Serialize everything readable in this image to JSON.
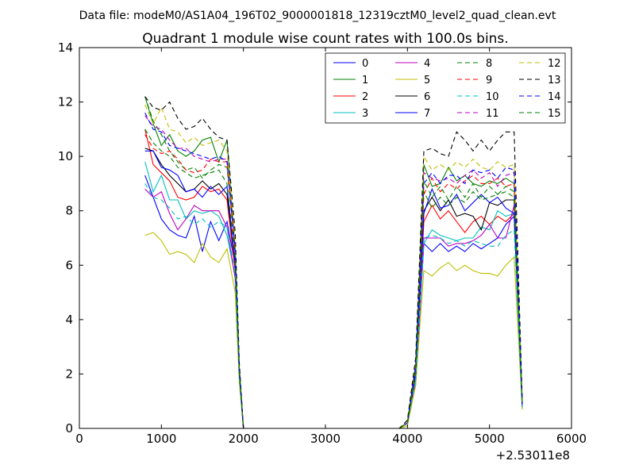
{
  "header": {
    "data_file": "Data file: modeM0/AS1A04_196T02_9000001818_12319cztM0_level2_quad_clean.evt"
  },
  "chart_data": {
    "type": "line",
    "title": "Quadrant 1 module wise count rates with 100.0s bins.",
    "xlabel": "",
    "ylabel": "",
    "x_offset_label": "+2.53011e8",
    "xlim": [
      0,
      6000
    ],
    "ylim": [
      0,
      14
    ],
    "x_ticks": [
      0,
      1000,
      2000,
      3000,
      4000,
      5000,
      6000
    ],
    "y_ticks": [
      0,
      2,
      4,
      6,
      8,
      10,
      12,
      14
    ],
    "grid": false,
    "legend_position": "top-right",
    "legend_columns": 4,
    "x": [
      800,
      900,
      1000,
      1100,
      1200,
      1300,
      1400,
      1500,
      1600,
      1700,
      1800,
      1900,
      1950,
      2000,
      2100,
      2200,
      2300,
      2400,
      2500,
      2600,
      2700,
      2800,
      2900,
      3000,
      3100,
      3200,
      3300,
      3400,
      3500,
      3600,
      3700,
      3800,
      3900,
      4000,
      4100,
      4200,
      4300,
      4400,
      4500,
      4600,
      4700,
      4800,
      4900,
      5000,
      5100,
      5200,
      5300,
      5400
    ],
    "series": [
      {
        "name": "0",
        "color": "#0000ff",
        "dash": false,
        "values": [
          9.3,
          8.5,
          7.7,
          7.3,
          7.1,
          7.0,
          7.8,
          6.5,
          7.6,
          6.9,
          7.6,
          6.0,
          2.0,
          0,
          0,
          0,
          0,
          0,
          0,
          0,
          0,
          0,
          0,
          0,
          0,
          0,
          0,
          0,
          0,
          0,
          0,
          0,
          0,
          0.2,
          1.6,
          6.8,
          6.5,
          6.8,
          6.5,
          6.7,
          6.5,
          6.8,
          6.6,
          6.8,
          7.0,
          7.5,
          7.8,
          0.7
        ]
      },
      {
        "name": "1",
        "color": "#008000",
        "dash": false,
        "values": [
          12.2,
          11.2,
          10.4,
          10.8,
          10.2,
          10.0,
          10.2,
          10.6,
          10.7,
          9.8,
          10.6,
          6.5,
          2.2,
          0,
          0,
          0,
          0,
          0,
          0,
          0,
          0,
          0,
          0,
          0,
          0,
          0,
          0,
          0,
          0,
          0,
          0,
          0,
          0,
          0.2,
          2.2,
          9.7,
          8.9,
          9.0,
          9.6,
          9.1,
          9.3,
          9.0,
          8.9,
          9.1,
          9.0,
          9.2,
          9.0,
          0.9
        ]
      },
      {
        "name": "2",
        "color": "#ff0000",
        "dash": false,
        "values": [
          11.0,
          9.7,
          9.4,
          9.1,
          8.5,
          8.4,
          8.5,
          8.9,
          8.7,
          8.8,
          8.4,
          5.8,
          2.0,
          0,
          0,
          0,
          0,
          0,
          0,
          0,
          0,
          0,
          0,
          0,
          0,
          0,
          0,
          0,
          0,
          0,
          0,
          0,
          0,
          0.2,
          2.0,
          7.6,
          8.2,
          7.7,
          8.0,
          7.6,
          7.2,
          7.6,
          7.8,
          7.5,
          7.8,
          7.6,
          7.9,
          0.8
        ]
      },
      {
        "name": "3",
        "color": "#00bfbf",
        "dash": false,
        "values": [
          9.8,
          8.7,
          9.3,
          8.4,
          8.4,
          7.7,
          8.0,
          7.9,
          8.0,
          7.8,
          7.1,
          5.6,
          1.9,
          0,
          0,
          0,
          0,
          0,
          0,
          0,
          0,
          0,
          0,
          0,
          0,
          0,
          0,
          0,
          0,
          0,
          0,
          0,
          0,
          0.2,
          1.8,
          6.8,
          7.3,
          7.1,
          7.0,
          6.9,
          7.0,
          7.0,
          7.4,
          7.3,
          8.0,
          7.8,
          7.9,
          0.8
        ]
      },
      {
        "name": "4",
        "color": "#bf00bf",
        "dash": false,
        "values": [
          8.8,
          8.5,
          8.7,
          7.9,
          7.3,
          7.7,
          8.2,
          8.0,
          8.0,
          8.0,
          7.4,
          5.5,
          1.9,
          0,
          0,
          0,
          0,
          0,
          0,
          0,
          0,
          0,
          0,
          0,
          0,
          0,
          0,
          0,
          0,
          0,
          0,
          0,
          0,
          0.2,
          1.7,
          7.0,
          7.0,
          7.0,
          6.7,
          6.8,
          6.8,
          6.9,
          7.1,
          7.5,
          7.0,
          7.0,
          8.2,
          0.8
        ]
      },
      {
        "name": "5",
        "color": "#bfbf00",
        "dash": false,
        "values": [
          7.1,
          7.2,
          6.9,
          6.4,
          6.5,
          6.4,
          6.1,
          6.8,
          6.3,
          6.1,
          6.6,
          5.0,
          1.7,
          0,
          0,
          0,
          0,
          0,
          0,
          0,
          0,
          0,
          0,
          0,
          0,
          0,
          0,
          0,
          0,
          0,
          0,
          0,
          0,
          0.1,
          1.6,
          5.8,
          5.6,
          5.9,
          6.1,
          5.8,
          6.0,
          5.8,
          5.7,
          5.7,
          5.6,
          6.0,
          6.3,
          0.7
        ]
      },
      {
        "name": "6",
        "color": "#000000",
        "dash": false,
        "values": [
          10.3,
          10.2,
          9.7,
          9.3,
          9.0,
          8.7,
          8.8,
          9.1,
          8.8,
          9.0,
          8.6,
          6.1,
          2.0,
          0,
          0,
          0,
          0,
          0,
          0,
          0,
          0,
          0,
          0,
          0,
          0,
          0,
          0,
          0,
          0,
          0,
          0,
          0,
          0,
          0.2,
          2.0,
          8.0,
          8.5,
          8.0,
          8.4,
          7.8,
          7.9,
          7.8,
          7.3,
          8.3,
          8.2,
          8.4,
          8.4,
          0.8
        ]
      },
      {
        "name": "7",
        "color": "#0000ff",
        "dash": false,
        "values": [
          10.2,
          10.2,
          9.6,
          9.5,
          9.3,
          8.7,
          8.8,
          8.5,
          8.9,
          8.6,
          8.9,
          6.0,
          2.0,
          0,
          0,
          0,
          0,
          0,
          0,
          0,
          0,
          0,
          0,
          0,
          0,
          0,
          0,
          0,
          0,
          0,
          0,
          0,
          0,
          0.2,
          2.0,
          7.9,
          8.8,
          8.1,
          8.2,
          8.6,
          8.0,
          8.3,
          8.6,
          8.3,
          8.5,
          8.1,
          7.9,
          0.8
        ]
      },
      {
        "name": "8",
        "color": "#008000",
        "dash": true,
        "values": [
          12.2,
          11.3,
          10.8,
          10.2,
          9.8,
          9.5,
          9.6,
          9.2,
          9.5,
          9.7,
          9.6,
          6.6,
          2.2,
          0,
          0,
          0,
          0,
          0,
          0,
          0,
          0,
          0,
          0,
          0,
          0,
          0,
          0,
          0,
          0,
          0,
          0,
          0,
          0,
          0.2,
          2.3,
          8.7,
          8.1,
          8.5,
          8.2,
          8.5,
          8.3,
          8.7,
          8.4,
          8.5,
          8.6,
          8.9,
          8.7,
          0.9
        ]
      },
      {
        "name": "9",
        "color": "#ff0000",
        "dash": true,
        "values": [
          10.8,
          10.3,
          10.1,
          10.2,
          9.9,
          9.5,
          9.4,
          9.5,
          9.9,
          9.8,
          9.8,
          6.4,
          2.1,
          0,
          0,
          0,
          0,
          0,
          0,
          0,
          0,
          0,
          0,
          0,
          0,
          0,
          0,
          0,
          0,
          0,
          0,
          0,
          0,
          0.2,
          2.2,
          8.6,
          9.2,
          8.7,
          9.0,
          8.8,
          9.1,
          9.3,
          9.0,
          9.0,
          9.2,
          8.9,
          9.0,
          0.9
        ]
      },
      {
        "name": "10",
        "color": "#00bfbf",
        "dash": true,
        "values": [
          9.0,
          8.5,
          8.4,
          8.1,
          7.7,
          7.8,
          7.5,
          7.7,
          7.4,
          7.6,
          7.4,
          5.7,
          1.9,
          0,
          0,
          0,
          0,
          0,
          0,
          0,
          0,
          0,
          0,
          0,
          0,
          0,
          0,
          0,
          0,
          0,
          0,
          0,
          0,
          0.2,
          1.8,
          7.0,
          7.1,
          7.0,
          6.8,
          6.9,
          6.7,
          6.9,
          6.8,
          6.7,
          6.7,
          7.1,
          7.3,
          0.8
        ]
      },
      {
        "name": "11",
        "color": "#bf00bf",
        "dash": true,
        "values": [
          11.5,
          11.1,
          11.0,
          10.6,
          10.3,
          10.3,
          10.0,
          9.9,
          9.8,
          9.9,
          9.9,
          6.5,
          2.2,
          0,
          0,
          0,
          0,
          0,
          0,
          0,
          0,
          0,
          0,
          0,
          0,
          0,
          0,
          0,
          0,
          0,
          0,
          0,
          0,
          0.2,
          2.3,
          9.4,
          9.2,
          9.1,
          9.2,
          9.0,
          9.3,
          9.5,
          9.2,
          9.4,
          8.9,
          9.3,
          9.4,
          0.9
        ]
      },
      {
        "name": "12",
        "color": "#bfbf00",
        "dash": true,
        "values": [
          11.9,
          11.2,
          11.8,
          11.0,
          10.9,
          10.5,
          10.7,
          10.4,
          10.5,
          10.6,
          10.2,
          6.9,
          2.3,
          0,
          0,
          0,
          0,
          0,
          0,
          0,
          0,
          0,
          0,
          0,
          0,
          0,
          0,
          0,
          0,
          0,
          0,
          0,
          0,
          0.3,
          2.5,
          10.0,
          9.5,
          9.7,
          9.5,
          9.8,
          9.6,
          9.9,
          9.6,
          9.5,
          9.8,
          9.6,
          9.7,
          1.0
        ]
      },
      {
        "name": "13",
        "color": "#000000",
        "dash": true,
        "values": [
          12.2,
          11.8,
          11.7,
          12.0,
          11.4,
          11.0,
          11.1,
          11.4,
          11.0,
          10.7,
          10.6,
          7.2,
          2.4,
          0,
          0,
          0,
          0,
          0,
          0,
          0,
          0,
          0,
          0,
          0,
          0,
          0,
          0,
          0,
          0,
          0,
          0,
          0,
          0,
          0.3,
          2.6,
          10.2,
          10.3,
          10.1,
          10.0,
          10.9,
          10.6,
          10.2,
          10.6,
          10.2,
          10.6,
          10.9,
          10.9,
          1.0
        ]
      },
      {
        "name": "14",
        "color": "#0000ff",
        "dash": true,
        "values": [
          11.6,
          11.0,
          10.9,
          10.4,
          10.3,
          10.2,
          10.1,
          10.0,
          9.9,
          10.0,
          9.8,
          6.5,
          2.2,
          0,
          0,
          0,
          0,
          0,
          0,
          0,
          0,
          0,
          0,
          0,
          0,
          0,
          0,
          0,
          0,
          0,
          0,
          0,
          0,
          0.2,
          2.3,
          9.0,
          9.4,
          9.0,
          9.3,
          9.3,
          9.0,
          9.5,
          9.4,
          9.5,
          9.2,
          9.6,
          9.5,
          0.9
        ]
      },
      {
        "name": "15",
        "color": "#008000",
        "dash": true,
        "values": [
          11.0,
          10.5,
          10.2,
          10.0,
          9.6,
          9.4,
          9.2,
          9.3,
          9.4,
          9.5,
          9.0,
          6.3,
          2.1,
          0,
          0,
          0,
          0,
          0,
          0,
          0,
          0,
          0,
          0,
          0,
          0,
          0,
          0,
          0,
          0,
          0,
          0,
          0,
          0,
          0.2,
          2.1,
          9.1,
          8.5,
          8.9,
          8.4,
          8.9,
          8.5,
          9.0,
          8.5,
          8.9,
          8.6,
          8.7,
          8.5,
          0.9
        ]
      }
    ]
  }
}
